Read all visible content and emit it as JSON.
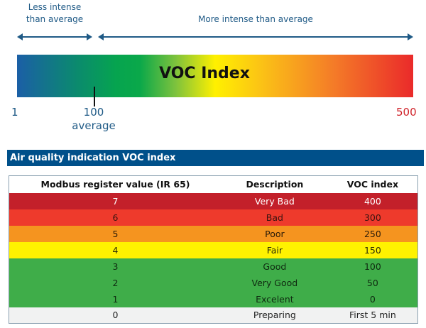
{
  "scale": {
    "less_label_line1": "Less intense",
    "less_label_line2": "than average",
    "more_label": "More intense than average",
    "bar_title": "VOC Index",
    "min": "1",
    "avg_value": "100",
    "avg_label": "average",
    "max": "500",
    "gradient_colors": [
      "#1b5fa6",
      "#06a44f",
      "#fff000",
      "#f47b28",
      "#ea2a2a"
    ]
  },
  "section_title": "Air quality indication VOC index",
  "table": {
    "headers": [
      "Modbus register value (IR 65)",
      "Description",
      "VOC index"
    ],
    "rows": [
      {
        "register": "7",
        "description": "Very Bad",
        "voc": "400",
        "bg": "#c3202a",
        "fg": "#ffffff"
      },
      {
        "register": "6",
        "description": "Bad",
        "voc": "300",
        "bg": "#ee3a2c",
        "fg": "#3a1410"
      },
      {
        "register": "5",
        "description": "Poor",
        "voc": "250",
        "bg": "#f5941f",
        "fg": "#2a1a08"
      },
      {
        "register": "4",
        "description": "Fair",
        "voc": "150",
        "bg": "#fff200",
        "fg": "#2a2a08"
      },
      {
        "register": "3",
        "description": "Good",
        "voc": "100",
        "bg": "#3fad49",
        "fg": "#0f2a10"
      },
      {
        "register": "2",
        "description": "Very Good",
        "voc": "50",
        "bg": "#3fad49",
        "fg": "#0f2a10"
      },
      {
        "register": "1",
        "description": "Excelent",
        "voc": "0",
        "bg": "#3fad49",
        "fg": "#0f2a10"
      },
      {
        "register": "0",
        "description": "Preparing",
        "voc": "First 5 min",
        "bg": "#f1f2f2",
        "fg": "#222222"
      }
    ]
  }
}
